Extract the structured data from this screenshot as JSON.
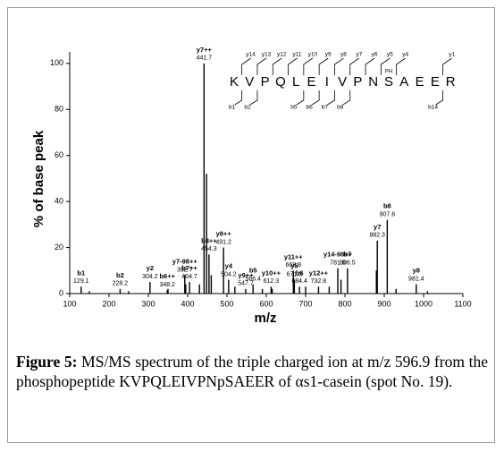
{
  "chart_data": {
    "type": "spectrum",
    "xlabel": "m/z",
    "ylabel": "% of base peak",
    "xlim": [
      100,
      1100
    ],
    "xticks": [
      100,
      200,
      300,
      400,
      500,
      600,
      700,
      800,
      900,
      1000,
      1100
    ],
    "ylim": [
      0,
      105
    ],
    "yticks": [
      0,
      20,
      40,
      60,
      80,
      100
    ],
    "color": "#000000",
    "series": [
      {
        "x": [
          129.1,
          228.2,
          304.2,
          348.2,
          392.7,
          404.7,
          441.7,
          454.3,
          491.2,
          504.2,
          547.7,
          566.4,
          612.3,
          668.8,
          671.3,
          684.4,
          732.8,
          781.9,
          806.5,
          882.3,
          907.6,
          981.4
        ],
        "values": [
          3,
          2,
          5,
          1.5,
          8,
          5,
          100,
          17,
          20,
          6,
          2,
          4,
          3,
          10,
          6,
          3,
          3,
          11,
          11,
          23,
          32,
          4
        ],
        "labels": [
          "b1",
          "b2",
          "y2",
          "b6++",
          "y7-98++",
          "b7++",
          "y7++",
          "b8++",
          "y8++",
          "y4",
          "y9++",
          "b5",
          "y10++",
          "y11++",
          "y5",
          "b6",
          "y12++",
          "y14-98++",
          "b7",
          "y7",
          "b8",
          "y8"
        ]
      },
      {
        "x": [
          150,
          250,
          350,
          395,
          430,
          448,
          460,
          520,
          590,
          615,
          700,
          760,
          790,
          880,
          930,
          1010
        ],
        "values": [
          1,
          1,
          2,
          4,
          4,
          52,
          8,
          3,
          2,
          2,
          3,
          3,
          6,
          10,
          2,
          1
        ]
      }
    ],
    "peptide": {
      "sequence": [
        "K",
        "V",
        "P",
        "Q",
        "L",
        "E",
        "I",
        "V",
        "P",
        "N",
        "S",
        "A",
        "E",
        "E",
        "R"
      ],
      "modification": "PH",
      "y_ions": [
        "y14",
        "y13",
        "y12",
        "y11",
        "y10",
        "y9",
        "y8",
        "y7",
        "y6",
        "y5",
        "y4",
        "y1"
      ],
      "b_ions": [
        "b1",
        "b2",
        "b5",
        "b6",
        "b7",
        "b8",
        "b14"
      ]
    }
  },
  "caption": {
    "label": "Figure 5:",
    "text": "MS/MS spectrum of the triple charged ion at m/z 596.9 from the phosphopeptide KVPQLEIVPNpSAEER of αs1-casein (spot No. 19)."
  }
}
